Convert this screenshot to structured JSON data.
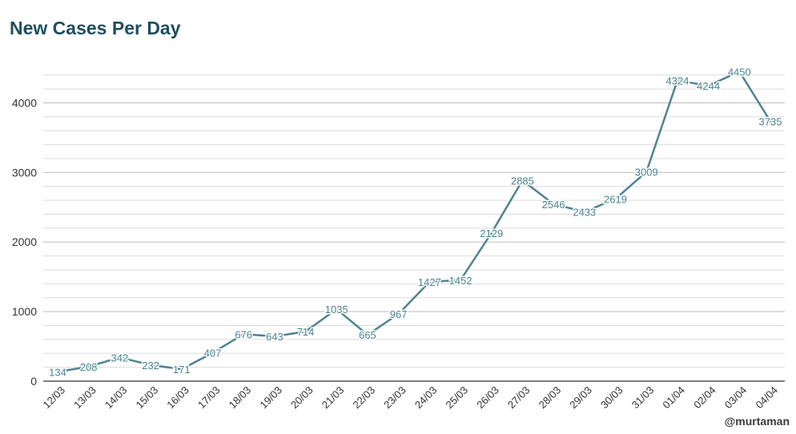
{
  "title": "New Cases Per Day",
  "credit": "@murtaman",
  "colors": {
    "line": "#4e8490",
    "title": "#1f4e5f",
    "label": "#4a8390",
    "grid_major": "#bdbdbd",
    "grid_minor": "#dcdcdc",
    "axis": "#555555"
  },
  "chart_data": {
    "type": "line",
    "title": "New Cases Per Day",
    "xlabel": "",
    "ylabel": "",
    "categories": [
      "12/03",
      "13/03",
      "14/03",
      "15/03",
      "16/03",
      "17/03",
      "18/03",
      "19/03",
      "20/03",
      "21/03",
      "22/03",
      "23/03",
      "24/03",
      "25/03",
      "26/03",
      "27/03",
      "28/03",
      "29/03",
      "30/03",
      "31/03",
      "01/04",
      "02/04",
      "03/04",
      "04/04"
    ],
    "values": [
      134,
      208,
      342,
      232,
      171,
      407,
      676,
      643,
      714,
      1035,
      665,
      967,
      1427,
      1452,
      2129,
      2885,
      2546,
      2433,
      2619,
      3009,
      4324,
      4244,
      4450,
      3735
    ],
    "ylim": [
      0,
      4500
    ],
    "yticks": [
      0,
      1000,
      2000,
      3000,
      4000
    ],
    "grid": true,
    "data_labels": true,
    "legend": "none"
  }
}
